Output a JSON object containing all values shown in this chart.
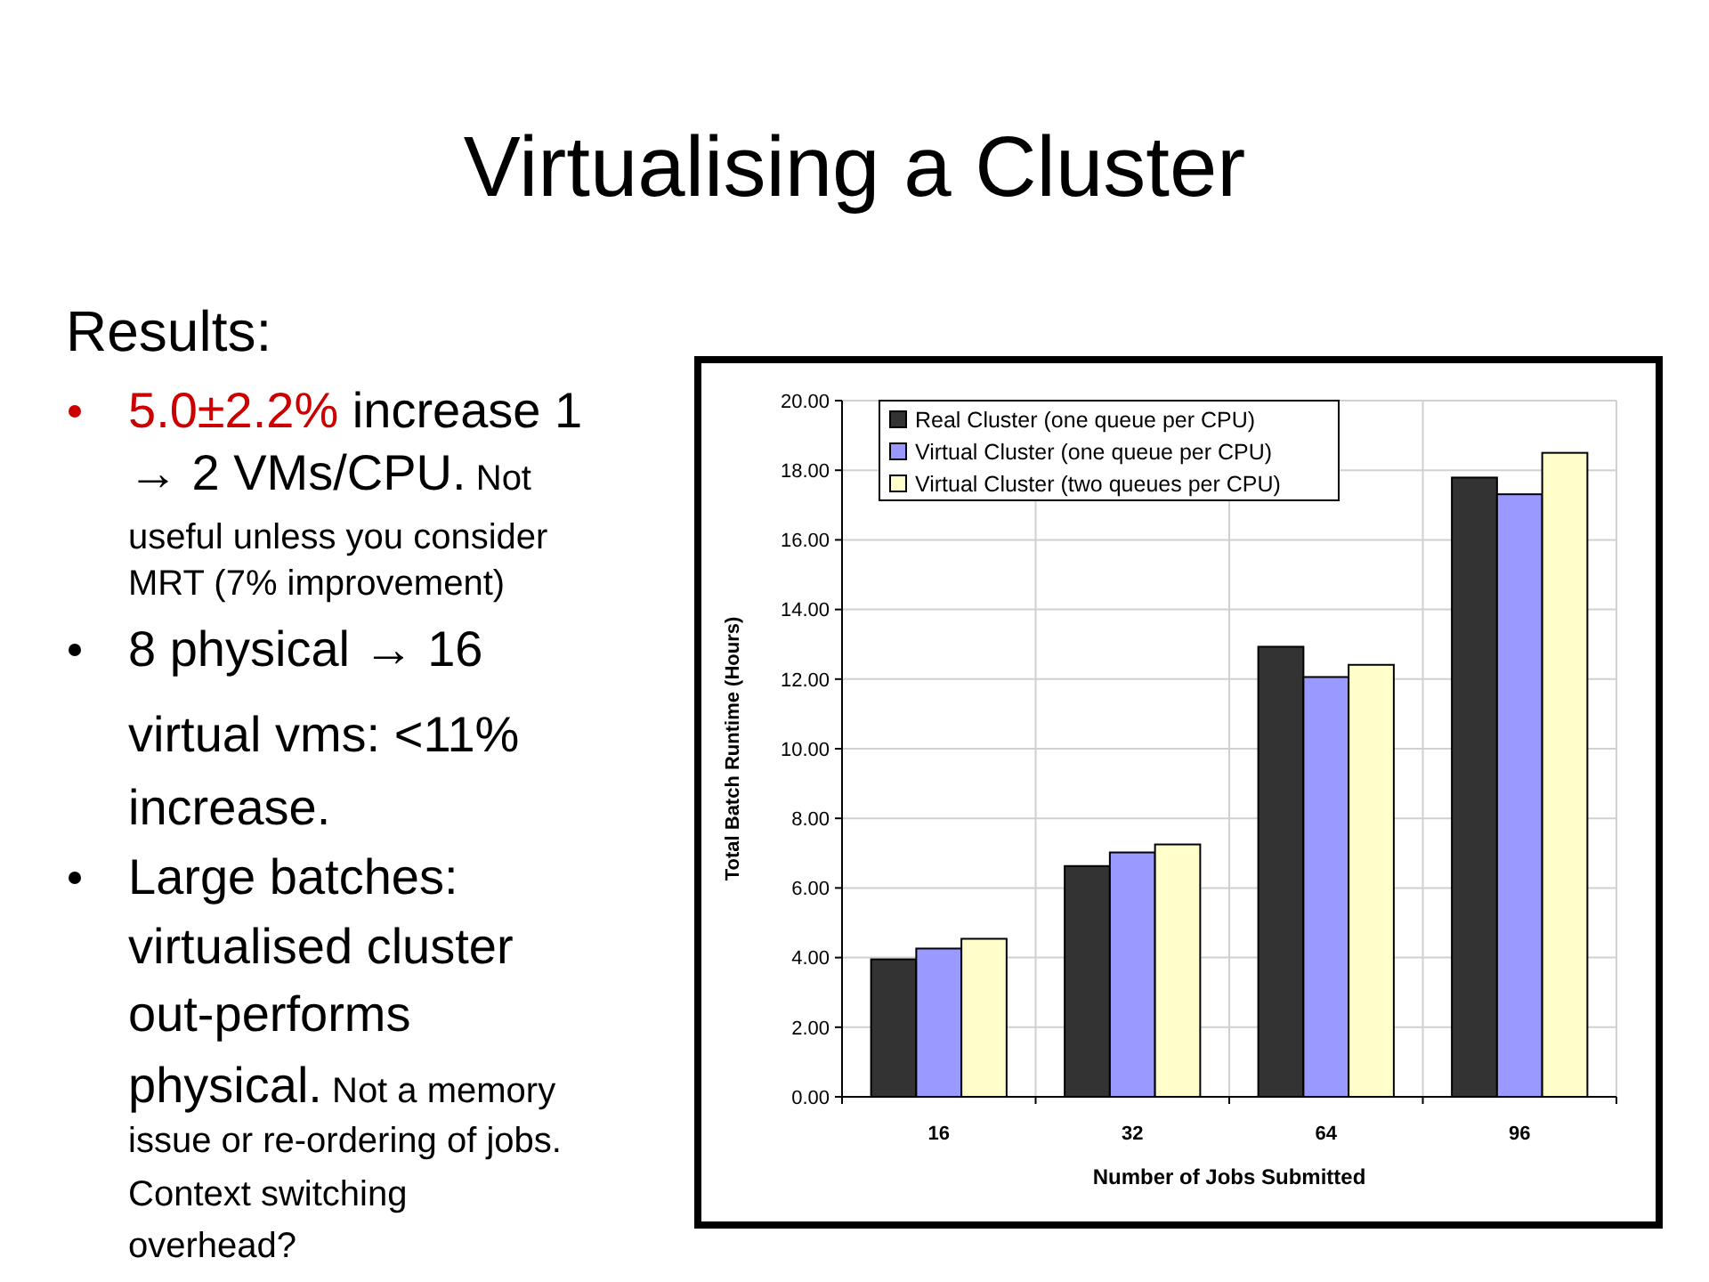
{
  "chart_data": {
    "type": "bar",
    "title": "Virtualising a Cluster",
    "xlabel": "Number of Jobs Submitted",
    "ylabel": "Total Batch Runtime (Hours)",
    "categories": [
      "16",
      "32",
      "64",
      "96"
    ],
    "series": [
      {
        "name": "Real Cluster (one queue per CPU)",
        "color": "#333333",
        "values": [
          3.95,
          6.63,
          12.93,
          17.79
        ]
      },
      {
        "name": "Virtual Cluster (one queue per CPU)",
        "color": "#9999ff",
        "values": [
          4.26,
          7.02,
          12.06,
          17.31
        ]
      },
      {
        "name": "Virtual Cluster (two queues per CPU)",
        "color": "#ffffcc",
        "values": [
          4.54,
          7.25,
          12.41,
          18.5
        ]
      }
    ],
    "ylim": [
      0,
      20
    ],
    "yticks": [
      {
        "value": 0,
        "label": "0.00"
      },
      {
        "value": 2,
        "label": "2.00"
      },
      {
        "value": 4,
        "label": "4.00"
      },
      {
        "value": 6,
        "label": "6.00"
      },
      {
        "value": 8,
        "label": "8.00"
      },
      {
        "value": 10,
        "label": "10.00"
      },
      {
        "value": 12,
        "label": "12.00"
      },
      {
        "value": 14,
        "label": "14.00"
      },
      {
        "value": 16,
        "label": "16.00"
      },
      {
        "value": 18,
        "label": "18.00"
      },
      {
        "value": 20,
        "label": "20.00"
      }
    ],
    "grid": true,
    "legend": "top left",
    "annotations": [
      "Results:",
      "5.0±2.2%",
      "increase 1",
      "→ 2 VMs/CPU.",
      "Not",
      "useful unless you consider",
      "MRT (7% improvement)",
      "8 physical → 16",
      "virtual vms: <11%",
      "increase.",
      "Large batches:",
      "virtualised cluster",
      "out-performs",
      "physical.",
      "Not a memory",
      "issue or re-ordering of jobs.",
      "Context switching",
      "overhead?"
    ]
  }
}
